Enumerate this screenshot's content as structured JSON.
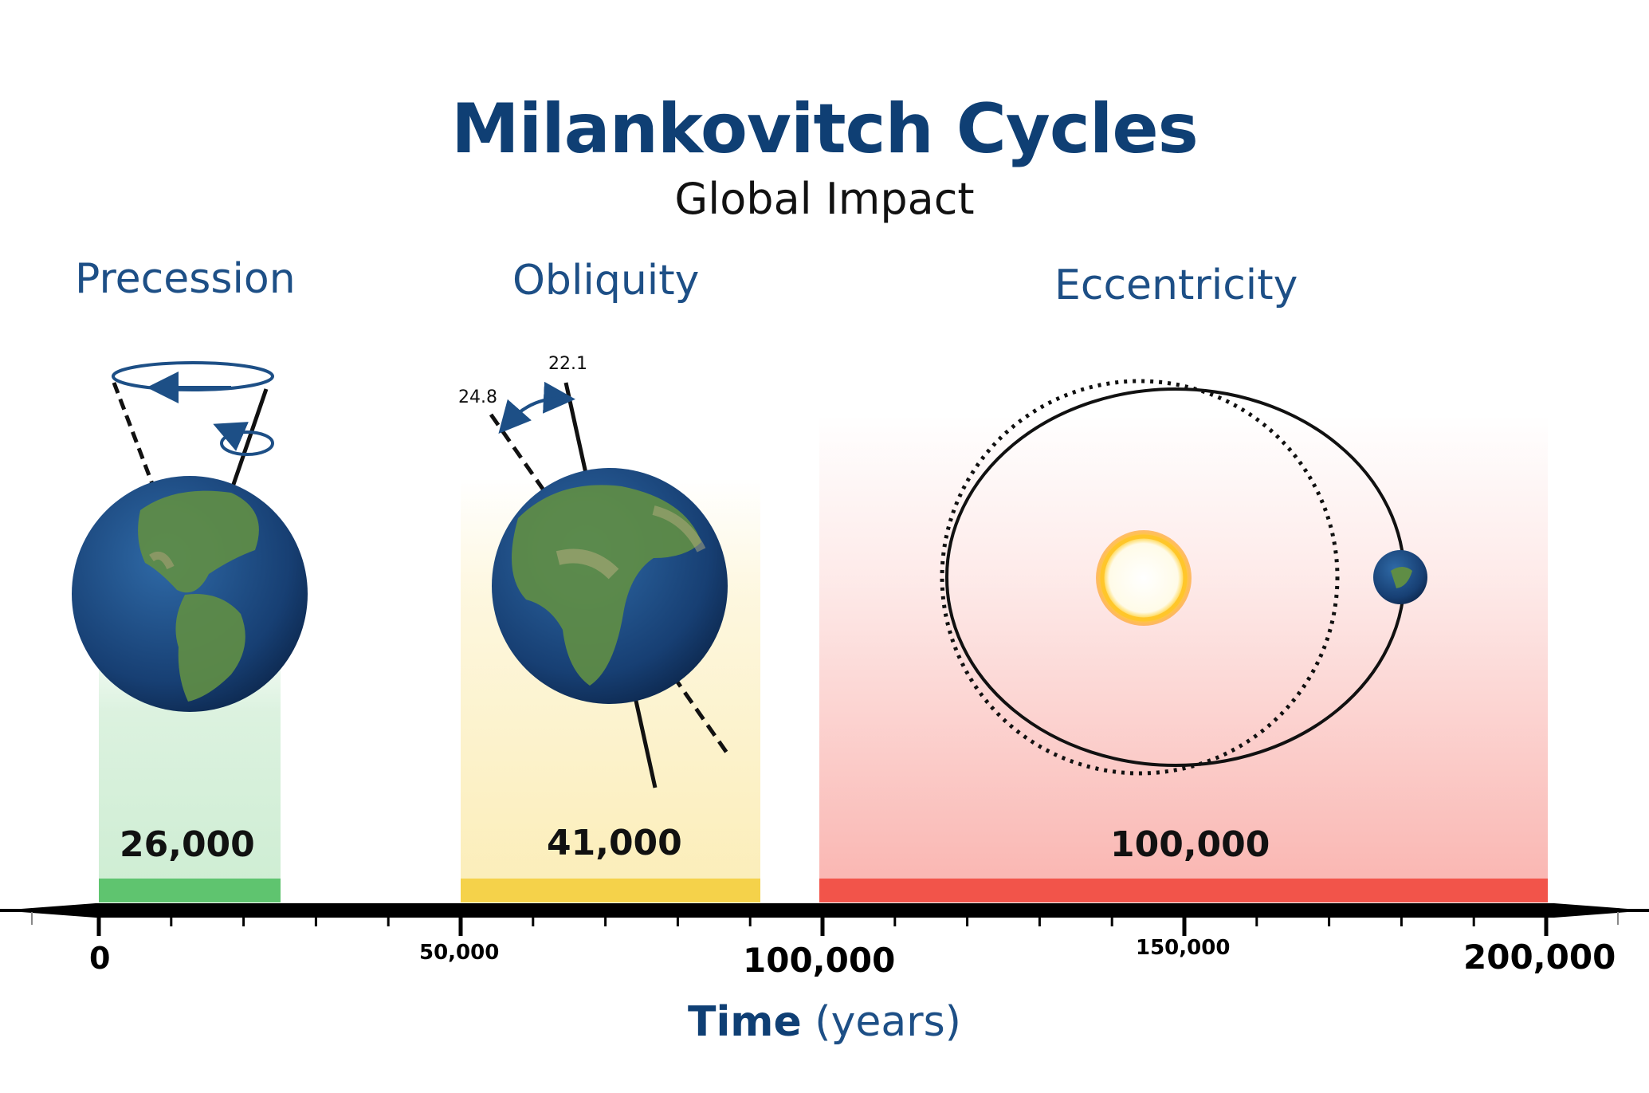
{
  "title": "Milankovitch Cycles",
  "subtitle": "Global Impact",
  "colors": {
    "title": "#0f3f74",
    "precession_band": "#5fc46f",
    "obliquity_band": "#f5d24a",
    "eccentricity_band": "#f2544a",
    "axis": "#000000"
  },
  "cycles": [
    {
      "name": "Precession",
      "period_label": "26,000",
      "period_years": 26000,
      "span_years": [
        0,
        26000
      ],
      "icon": "earth-precession-icon"
    },
    {
      "name": "Obliquity",
      "period_label": "41,000",
      "period_years": 41000,
      "span_years": [
        50000,
        91000
      ],
      "angle_low": "22.1",
      "angle_high": "24.8",
      "icon": "earth-tilt-icon"
    },
    {
      "name": "Eccentricity",
      "period_label": "100,000",
      "period_years": 100000,
      "span_years": [
        100000,
        200000
      ],
      "icon": "orbit-sun-icon"
    }
  ],
  "axis": {
    "title_bold": "Time",
    "title_unit": "(years)",
    "tick_labels": [
      "0",
      "50,000",
      "100,000",
      "150,000",
      "200,000"
    ],
    "range_years": [
      0,
      200000
    ],
    "minor_tick_step_years": 10000
  }
}
